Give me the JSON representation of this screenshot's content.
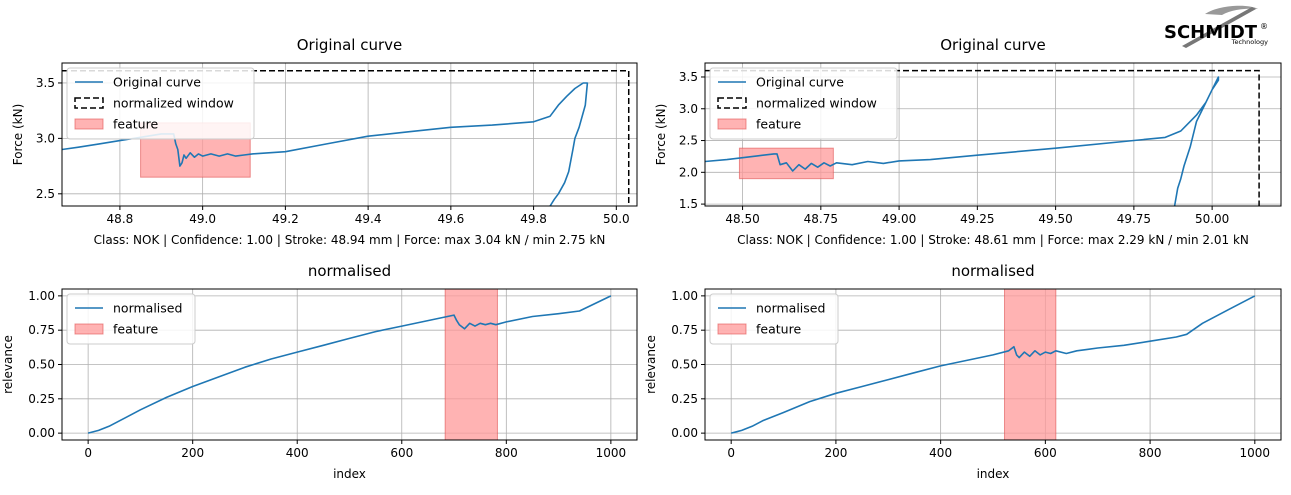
{
  "logo": {
    "name": "SCHMIDT",
    "mark": "®",
    "tagline": "Technology"
  },
  "colors": {
    "curve": "#1f77b4",
    "feature_fill": "#ff9999",
    "feature_edge": "#e05050",
    "window": "#000000",
    "grid": "#b0b0b0"
  },
  "chart_data": [
    {
      "type": "line",
      "title": "Original curve",
      "xlabel": "Class: NOK | Confidence: 1.00 | Stroke: 48.94 mm | Force: max 3.04 kN / min 2.75 kN",
      "ylabel": "Force (kN)",
      "xlim": [
        48.66,
        50.05
      ],
      "ylim": [
        2.39,
        3.68
      ],
      "xticks": [
        "48.8",
        "49.0",
        "49.2",
        "49.4",
        "49.6",
        "49.8",
        "50.0"
      ],
      "xtick_values": [
        48.8,
        49.0,
        49.2,
        49.4,
        49.6,
        49.8,
        50.0
      ],
      "yticks": [
        "2.5",
        "3.0",
        "3.5"
      ],
      "ytick_values": [
        2.5,
        3.0,
        3.5
      ],
      "legend": [
        "Original curve",
        "normalized window",
        "feature"
      ],
      "legend_position": "top-left",
      "grid": true,
      "series": [
        {
          "name": "Original curve",
          "x": [
            48.66,
            48.7,
            48.75,
            48.8,
            48.85,
            48.9,
            48.93,
            48.935,
            48.94,
            48.945,
            48.95,
            48.955,
            48.96,
            48.97,
            48.98,
            48.99,
            49.0,
            49.02,
            49.04,
            49.06,
            49.08,
            49.1,
            49.12,
            49.2,
            49.3,
            49.4,
            49.5,
            49.6,
            49.7,
            49.8,
            49.84,
            49.86,
            49.88,
            49.9,
            49.92,
            49.93,
            49.925,
            49.91,
            49.9,
            49.895,
            49.885,
            49.875,
            49.86,
            49.85,
            49.84
          ],
          "y": [
            2.9,
            2.92,
            2.95,
            2.98,
            3.01,
            3.04,
            3.04,
            2.95,
            2.9,
            2.75,
            2.78,
            2.85,
            2.82,
            2.87,
            2.83,
            2.86,
            2.84,
            2.86,
            2.84,
            2.86,
            2.84,
            2.85,
            2.86,
            2.88,
            2.95,
            3.02,
            3.06,
            3.1,
            3.12,
            3.15,
            3.2,
            3.3,
            3.38,
            3.45,
            3.5,
            3.5,
            3.3,
            3.1,
            3.0,
            2.9,
            2.7,
            2.6,
            2.5,
            2.45,
            2.39
          ]
        }
      ],
      "window": {
        "x": [
          48.66,
          50.03
        ],
        "y": [
          2.39,
          3.61
        ]
      },
      "feature": {
        "x": [
          48.85,
          49.115
        ],
        "y": [
          2.65,
          3.14
        ]
      }
    },
    {
      "type": "line",
      "title": "Original curve",
      "xlabel": "Class: NOK | Confidence: 1.00 | Stroke: 48.61 mm | Force: max 2.29 kN / min 2.01 kN",
      "ylabel": "Force (kN)",
      "xlim": [
        48.38,
        50.22
      ],
      "ylim": [
        1.47,
        3.72
      ],
      "xticks": [
        "48.50",
        "48.75",
        "49.00",
        "49.25",
        "49.50",
        "49.75",
        "50.00"
      ],
      "xtick_values": [
        48.5,
        48.75,
        49.0,
        49.25,
        49.5,
        49.75,
        50.0
      ],
      "yticks": [
        "1.5",
        "2.0",
        "2.5",
        "3.0",
        "3.5"
      ],
      "ytick_values": [
        1.5,
        2.0,
        2.5,
        3.0,
        3.5
      ],
      "legend": [
        "Original curve",
        "normalized window",
        "feature"
      ],
      "legend_position": "top-left",
      "grid": true,
      "series": [
        {
          "name": "Original curve",
          "x": [
            48.38,
            48.45,
            48.5,
            48.55,
            48.6,
            48.61,
            48.62,
            48.64,
            48.66,
            48.68,
            48.7,
            48.72,
            48.74,
            48.76,
            48.78,
            48.8,
            48.85,
            48.9,
            48.95,
            49.0,
            49.1,
            49.25,
            49.5,
            49.75,
            49.85,
            49.9,
            49.95,
            49.98,
            50.0,
            50.02,
            50.02,
            50.0,
            49.98,
            49.95,
            49.93,
            49.91,
            49.9,
            49.89,
            49.88
          ],
          "y": [
            2.17,
            2.2,
            2.23,
            2.26,
            2.29,
            2.29,
            2.12,
            2.15,
            2.02,
            2.12,
            2.05,
            2.14,
            2.08,
            2.15,
            2.1,
            2.15,
            2.12,
            2.17,
            2.14,
            2.18,
            2.2,
            2.27,
            2.38,
            2.5,
            2.55,
            2.65,
            2.9,
            3.1,
            3.3,
            3.45,
            3.5,
            3.3,
            3.1,
            2.8,
            2.4,
            2.1,
            1.9,
            1.75,
            1.47
          ]
        }
      ],
      "window": {
        "x": [
          48.38,
          50.15
        ],
        "y": [
          1.47,
          3.6
        ]
      },
      "feature": {
        "x": [
          48.49,
          48.79
        ],
        "y": [
          1.9,
          2.38
        ]
      }
    },
    {
      "type": "line",
      "title": "normalised",
      "xlabel": "index",
      "ylabel": "relevance",
      "xlim": [
        -50,
        1050
      ],
      "ylim": [
        -0.05,
        1.05
      ],
      "xticks": [
        "0",
        "200",
        "400",
        "600",
        "800",
        "1000"
      ],
      "xtick_values": [
        0,
        200,
        400,
        600,
        800,
        1000
      ],
      "yticks": [
        "0.00",
        "0.25",
        "0.50",
        "0.75",
        "1.00"
      ],
      "ytick_values": [
        0,
        0.25,
        0.5,
        0.75,
        1.0
      ],
      "legend": [
        "normalised",
        "feature"
      ],
      "legend_position": "top-left",
      "grid": true,
      "series": [
        {
          "name": "normalised",
          "x": [
            0,
            20,
            40,
            60,
            80,
            100,
            150,
            200,
            250,
            300,
            350,
            400,
            450,
            500,
            550,
            600,
            650,
            700,
            705,
            710,
            720,
            730,
            740,
            750,
            760,
            770,
            780,
            800,
            850,
            900,
            940,
            1000
          ],
          "y": [
            0,
            0.02,
            0.05,
            0.09,
            0.13,
            0.17,
            0.26,
            0.34,
            0.41,
            0.48,
            0.54,
            0.59,
            0.64,
            0.69,
            0.74,
            0.78,
            0.82,
            0.86,
            0.82,
            0.79,
            0.76,
            0.8,
            0.78,
            0.8,
            0.79,
            0.8,
            0.79,
            0.81,
            0.85,
            0.87,
            0.89,
            1.0
          ]
        }
      ],
      "feature": {
        "x": [
          683,
          783
        ]
      }
    },
    {
      "type": "line",
      "title": "normalised",
      "xlabel": "index",
      "ylabel": "relevance",
      "xlim": [
        -50,
        1050
      ],
      "ylim": [
        -0.05,
        1.05
      ],
      "xticks": [
        "0",
        "200",
        "400",
        "600",
        "800",
        "1000"
      ],
      "xtick_values": [
        0,
        200,
        400,
        600,
        800,
        1000
      ],
      "yticks": [
        "0.00",
        "0.25",
        "0.50",
        "0.75",
        "1.00"
      ],
      "ytick_values": [
        0,
        0.25,
        0.5,
        0.75,
        1.0
      ],
      "legend": [
        "normalised",
        "feature"
      ],
      "legend_position": "top-left",
      "grid": true,
      "series": [
        {
          "name": "normalised",
          "x": [
            0,
            10,
            20,
            40,
            60,
            100,
            150,
            200,
            250,
            300,
            350,
            400,
            450,
            500,
            530,
            540,
            545,
            550,
            560,
            570,
            580,
            590,
            600,
            610,
            620,
            640,
            660,
            680,
            700,
            750,
            800,
            850,
            870,
            900,
            950,
            1000
          ],
          "y": [
            0,
            0.01,
            0.02,
            0.05,
            0.09,
            0.15,
            0.23,
            0.29,
            0.34,
            0.39,
            0.44,
            0.49,
            0.53,
            0.57,
            0.6,
            0.63,
            0.57,
            0.55,
            0.59,
            0.56,
            0.6,
            0.57,
            0.59,
            0.58,
            0.6,
            0.58,
            0.6,
            0.61,
            0.62,
            0.64,
            0.67,
            0.7,
            0.72,
            0.8,
            0.9,
            1.0
          ]
        }
      ],
      "feature": {
        "x": [
          522,
          620
        ]
      }
    }
  ]
}
